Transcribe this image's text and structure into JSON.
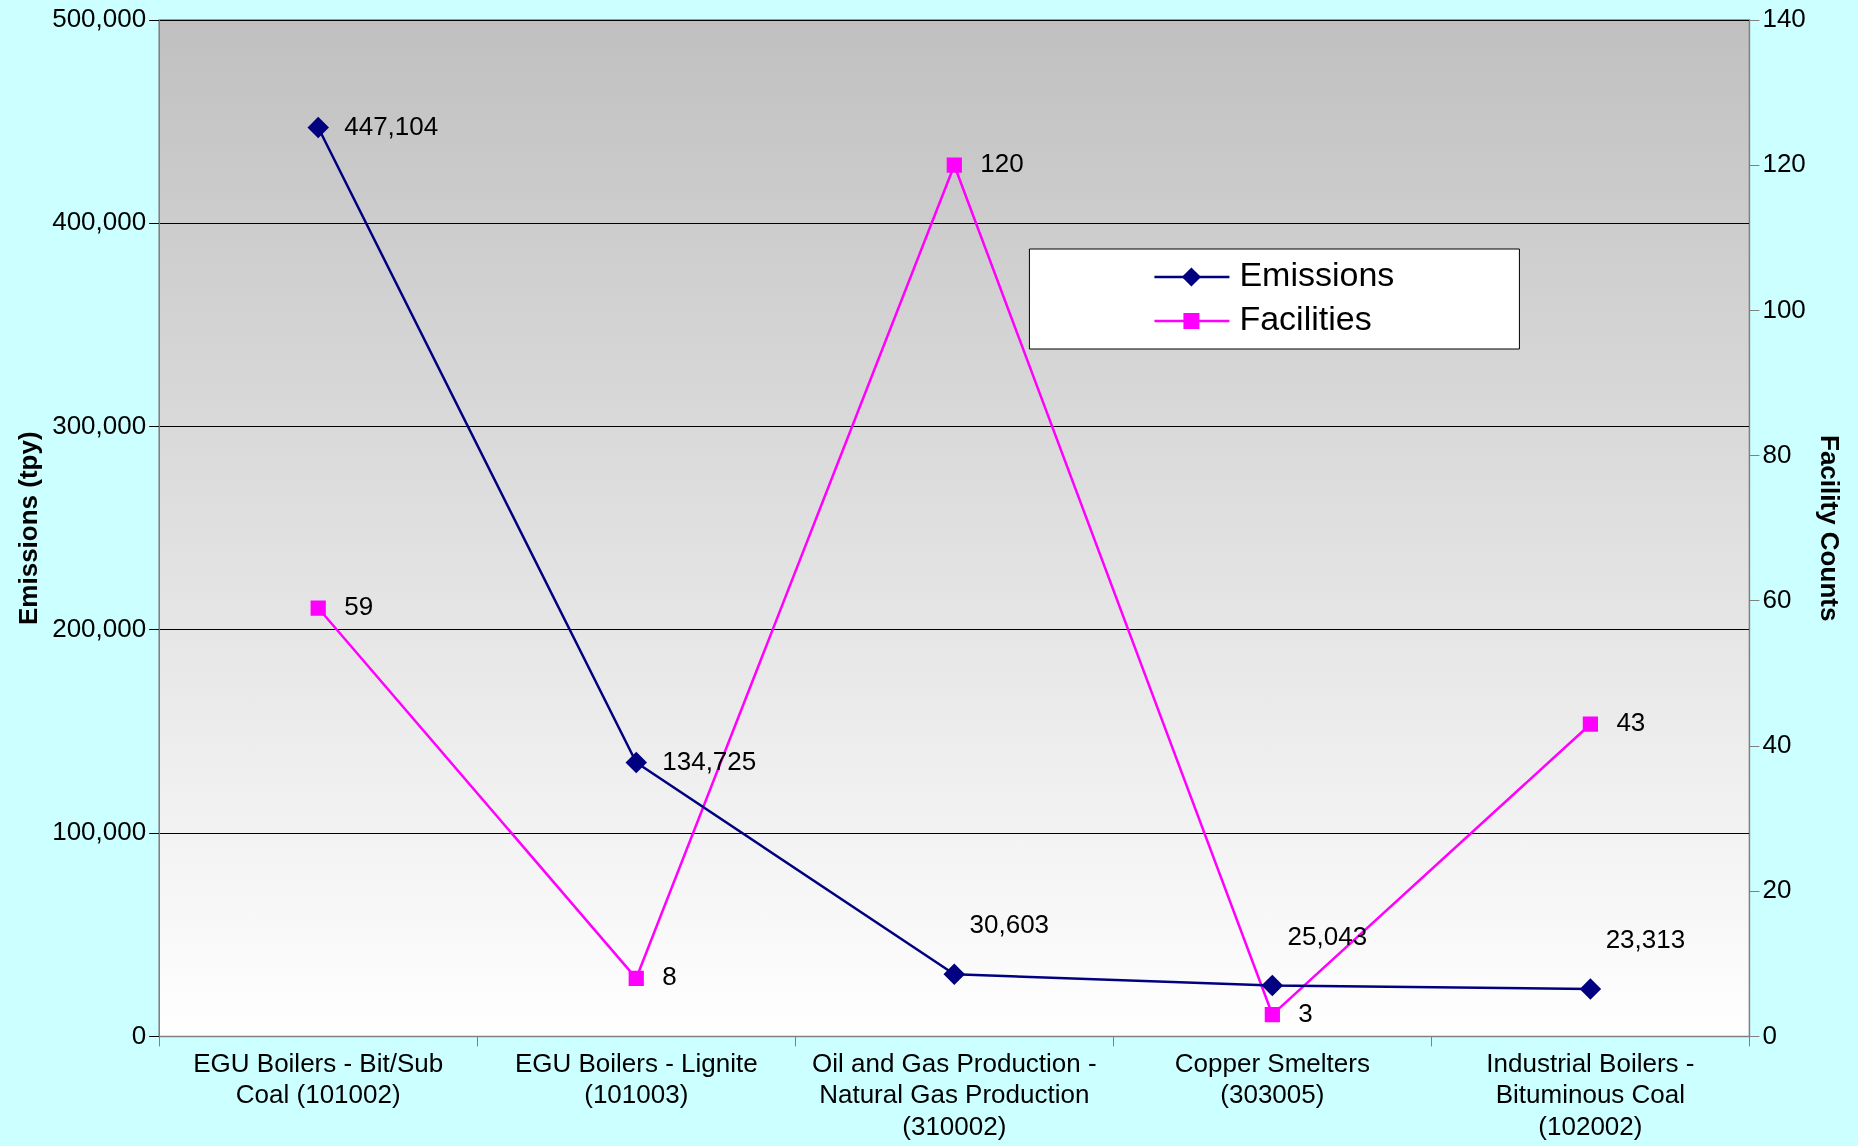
{
  "chart_data": {
    "type": "line",
    "categories": [
      "EGU Boilers - Bit/Sub Coal (101002)",
      "EGU Boilers - Lignite (101003)",
      "Oil and Gas Production - Natural Gas Production (310002)",
      "Copper Smelters (303005)",
      "Industrial Boilers - Bituminous Coal (102002)"
    ],
    "series": [
      {
        "name": "Emissions",
        "color": "#000080",
        "values": [
          447104,
          134725,
          30603,
          25043,
          23313
        ],
        "value_labels": [
          "447,104",
          "134,725",
          "30,603",
          "25,043",
          "23,313"
        ],
        "marker": "diamond"
      },
      {
        "name": "Facilities",
        "color": "#ff00ff",
        "values": [
          59,
          8,
          120,
          3,
          43
        ],
        "value_labels": [
          "59",
          "8",
          "120",
          "3",
          "43"
        ],
        "axis": "y2",
        "marker": "square"
      }
    ],
    "ylabel": "Emissions (tpy)",
    "y2label": "Facility Counts",
    "ylim": [
      0,
      500000
    ],
    "yticks": [
      0,
      {
        "value": 100000,
        "label": "100,000"
      },
      {
        "value": 200000,
        "label": "200,000"
      },
      {
        "value": 300000,
        "label": "300,000"
      },
      {
        "value": 400000,
        "label": "400,000"
      },
      {
        "value": 500000,
        "label": "500,000"
      }
    ],
    "y2lim": [
      0,
      140
    ],
    "y2ticks": [
      0,
      20,
      40,
      60,
      80,
      100,
      120,
      140
    ],
    "grid": "y",
    "legend": "top right",
    "line_style": "solid"
  }
}
